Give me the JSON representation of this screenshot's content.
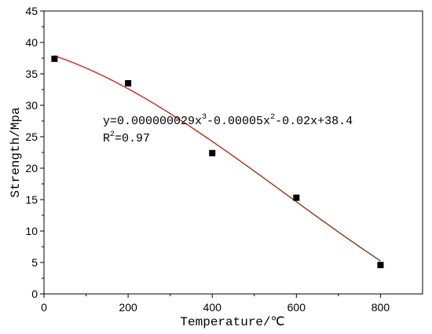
{
  "chart_data": {
    "type": "scatter",
    "xlabel": "Temperature/℃",
    "ylabel": "Strength/Mpa",
    "xlim": [
      0,
      900
    ],
    "ylim": [
      0,
      45
    ],
    "x_ticks": [
      0,
      200,
      400,
      600,
      800
    ],
    "y_ticks": [
      0,
      5,
      10,
      15,
      20,
      25,
      30,
      35,
      40,
      45
    ],
    "grid": false,
    "series": [
      {
        "kind": "points",
        "marker": "square",
        "color": "#000000",
        "points": [
          {
            "x": 25,
            "y": 37.4
          },
          {
            "x": 200,
            "y": 33.5
          },
          {
            "x": 400,
            "y": 22.4
          },
          {
            "x": 600,
            "y": 15.3
          },
          {
            "x": 800,
            "y": 4.6
          }
        ]
      },
      {
        "kind": "fit-line",
        "color_start": "#e02020",
        "color_end": "#7a3a10",
        "x_range": [
          25,
          800
        ],
        "coefficients": {
          "a3": 2.9e-08,
          "a2": -5e-05,
          "a1": -0.02,
          "a0": 38.4
        }
      }
    ],
    "annotations": {
      "eq_main": "y=0.000000029x",
      "eq_exp3": "3",
      "eq_mid": "-0.00005x",
      "eq_exp2": "2",
      "eq_tail": "-0.02x+38.4",
      "r2_prefix": "R",
      "r2_exp": "2",
      "r2_value": "=0.97"
    }
  }
}
